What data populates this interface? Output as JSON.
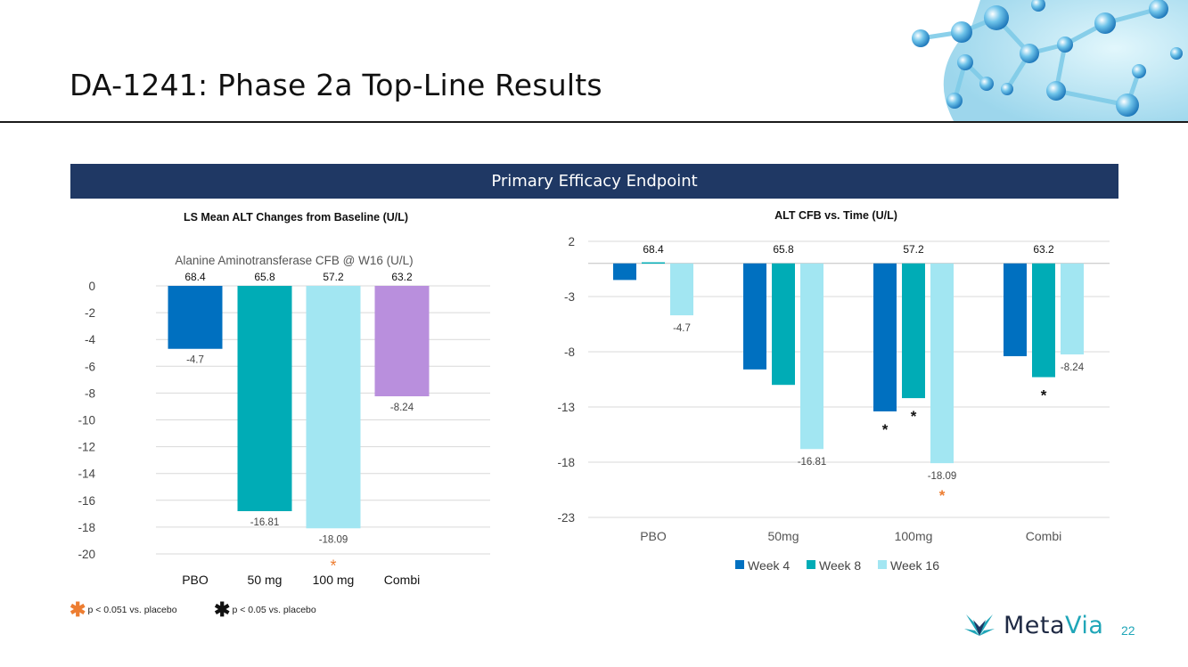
{
  "slide": {
    "title": "DA-1241: Phase 2a Top-Line Results",
    "banner": "Primary Efficacy Endpoint",
    "page_number": "22",
    "logo_text_a": "Meta",
    "logo_text_b": "Via",
    "footnotes": [
      {
        "symbol": "✱",
        "color": "#ed7d31",
        "text": "p < 0.051 vs. placebo"
      },
      {
        "symbol": "✱",
        "color": "#111111",
        "text": "p < 0.05 vs. placebo"
      }
    ]
  },
  "chart_data": [
    {
      "type": "bar",
      "title": "LS Mean ALT Changes from Baseline (U/L)",
      "subtitle": "Alanine Aminotransferase CFB @ W16 (U/L)",
      "categories": [
        "PBO",
        "50 mg",
        "100 mg",
        "Combi"
      ],
      "values": [
        -4.7,
        -16.81,
        -18.09,
        -8.24
      ],
      "value_labels": [
        "-4.7",
        "-16.81",
        "-18.09",
        "-8.24"
      ],
      "baseline_labels": [
        "68.4",
        "65.8",
        "57.2",
        "63.2"
      ],
      "colors": [
        "#0070c0",
        "#00acb6",
        "#a2e6f2",
        "#b98fdd"
      ],
      "significance": [
        "",
        "",
        "orange",
        ""
      ],
      "ylim": [
        -20,
        0
      ],
      "yticks": [
        0,
        -2,
        -4,
        -6,
        -8,
        -10,
        -12,
        -14,
        -16,
        -18,
        -20
      ],
      "grid": true
    },
    {
      "type": "bar",
      "title": "ALT CFB vs. Time (U/L)",
      "categories": [
        "PBO",
        "50mg",
        "100mg",
        "Combi"
      ],
      "baseline_labels": [
        "68.4",
        "65.8",
        "57.2",
        "63.2"
      ],
      "series": [
        {
          "name": "Week 4",
          "color": "#0070c0",
          "values": [
            -1.5,
            -9.6,
            -13.4,
            -8.4
          ]
        },
        {
          "name": "Week 8",
          "color": "#00acb6",
          "values": [
            0.1,
            -11.0,
            -12.2,
            -10.3
          ]
        },
        {
          "name": "Week 16",
          "color": "#a2e6f2",
          "values": [
            -4.7,
            -16.81,
            -18.09,
            -8.24
          ]
        }
      ],
      "value_labels": {
        "series": "Week 16",
        "labels": [
          "-4.7",
          "-16.81",
          "-18.09",
          "-8.24"
        ]
      },
      "significance": [
        {
          "category": "100mg",
          "series": "Week 4",
          "color": "black"
        },
        {
          "category": "100mg",
          "series": "Week 8",
          "color": "black"
        },
        {
          "category": "100mg",
          "series": "Week 16",
          "color": "orange"
        },
        {
          "category": "Combi",
          "series": "Week 8",
          "color": "black"
        }
      ],
      "ylim": [
        -23,
        2
      ],
      "yticks": [
        2,
        -3,
        -8,
        -13,
        -18,
        -23
      ],
      "legend": "bottom",
      "grid": true
    }
  ]
}
